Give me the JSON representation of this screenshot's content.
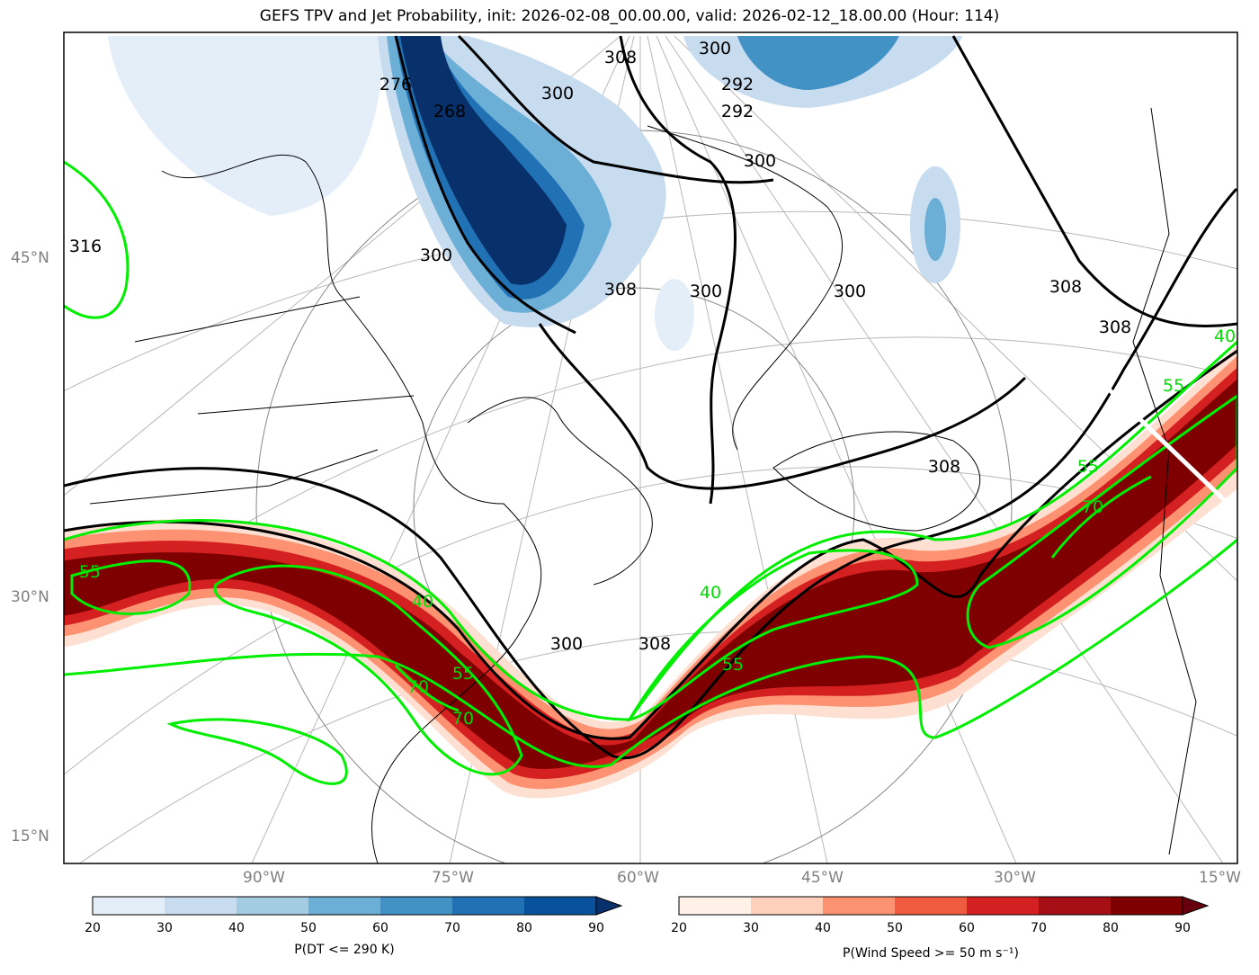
{
  "title": "GEFS TPV and Jet Probability, init: 2026-02-08_00.00.00, valid: 2026-02-12_18.00.00 (Hour: 114)",
  "lat_labels": [
    "45°N",
    "30°N",
    "15°N"
  ],
  "lon_labels": [
    "90°W",
    "75°W",
    "60°W",
    "45°W",
    "30°W",
    "15°W"
  ],
  "theta_contour_labels": [
    "308",
    "300",
    "292",
    "292",
    "300",
    "268",
    "276",
    "300",
    "300",
    "300",
    "300",
    "308",
    "308",
    "308",
    "316",
    "300",
    "308",
    "308"
  ],
  "wind_contour_labels": [
    "55",
    "70",
    "55",
    "70",
    "40",
    "55",
    "40",
    "55",
    "70",
    "55",
    "40"
  ],
  "colorbar_blue": {
    "label": "P(DT <= 290 K)",
    "ticks": [
      "20",
      "30",
      "40",
      "50",
      "60",
      "70",
      "80",
      "90"
    ],
    "colors": [
      "#e4eef9",
      "#c8dcef",
      "#a3cce3",
      "#6baed6",
      "#4292c6",
      "#2171b5",
      "#08519c"
    ],
    "extend_color": "#08306b"
  },
  "colorbar_red": {
    "label": "P(Wind Speed >= 50 m s⁻¹)",
    "ticks": [
      "20",
      "30",
      "40",
      "50",
      "60",
      "70",
      "80",
      "90"
    ],
    "colors": [
      "#fff0e8",
      "#fdd0bc",
      "#fc9272",
      "#ef5b3f",
      "#d42020",
      "#a50f15",
      "#7f0000"
    ],
    "extend_color": "#67000d"
  }
}
